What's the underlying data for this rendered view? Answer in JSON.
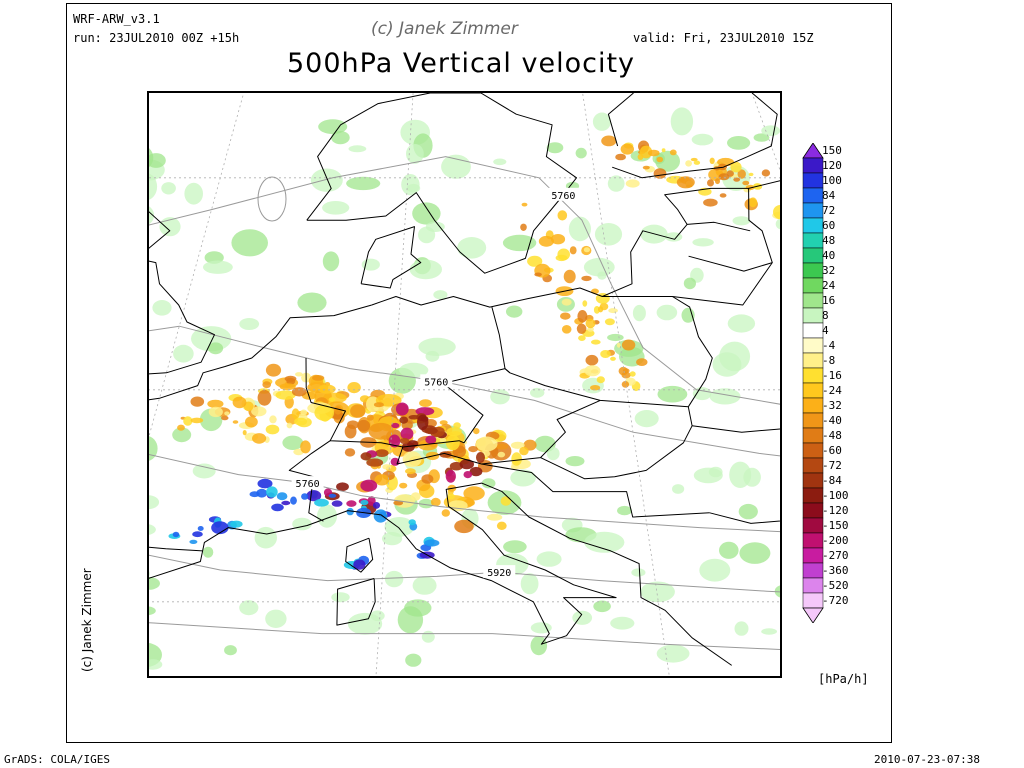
{
  "header": {
    "model": "WRF-ARW_v3.1",
    "run": "run: 23JUL2010 00Z +15h",
    "copyright": "(c) Janek Zimmer",
    "valid": "valid: Fri, 23JUL2010 15Z"
  },
  "title": "500hPa Vertical velocity",
  "side_copyright": "(c) Janek Zimmer",
  "footer": {
    "left": "GrADS: COLA/IGES",
    "right": "2010-07-23-07:38"
  },
  "map": {
    "contour_labels": [
      {
        "text": "5760",
        "lon": 18.2,
        "lat": 59.2
      },
      {
        "text": "5760",
        "lon": 11.8,
        "lat": 50.4
      },
      {
        "text": "5760",
        "lon": 6.8,
        "lat": 45.6
      },
      {
        "text": "5920",
        "lon": 14.3,
        "lat": 41.4
      }
    ],
    "colors": {
      "coast": "#000000",
      "geopotential": "#9a9a9a",
      "graticule": "#b0b0b0"
    }
  },
  "colorbar": {
    "unit": "[hPa/h]",
    "labels": [
      "150",
      "120",
      "100",
      "84",
      "72",
      "60",
      "48",
      "40",
      "32",
      "24",
      "16",
      "8",
      "4",
      "-4",
      "-8",
      "-16",
      "-24",
      "-32",
      "-40",
      "-48",
      "-60",
      "-72",
      "-84",
      "-100",
      "-120",
      "-150",
      "-200",
      "-270",
      "-360",
      "-520",
      "-720"
    ],
    "colors": [
      "#8b2be0",
      "#3b19c8",
      "#2233e0",
      "#1e64f0",
      "#1e95f0",
      "#20c8e8",
      "#22d0b0",
      "#26c87a",
      "#3cc850",
      "#70d860",
      "#a0e68c",
      "#c8f5c0",
      "#ffffff",
      "#fffbc8",
      "#fff08a",
      "#ffe030",
      "#ffc81e",
      "#fcb018",
      "#f09618",
      "#e07c16",
      "#cc6014",
      "#b44812",
      "#a03410",
      "#8c1c10",
      "#8c0c1c",
      "#a00a40",
      "#c01070",
      "#c81ca0",
      "#c040d0",
      "#dc84ec",
      "#f5c8fa"
    ]
  }
}
